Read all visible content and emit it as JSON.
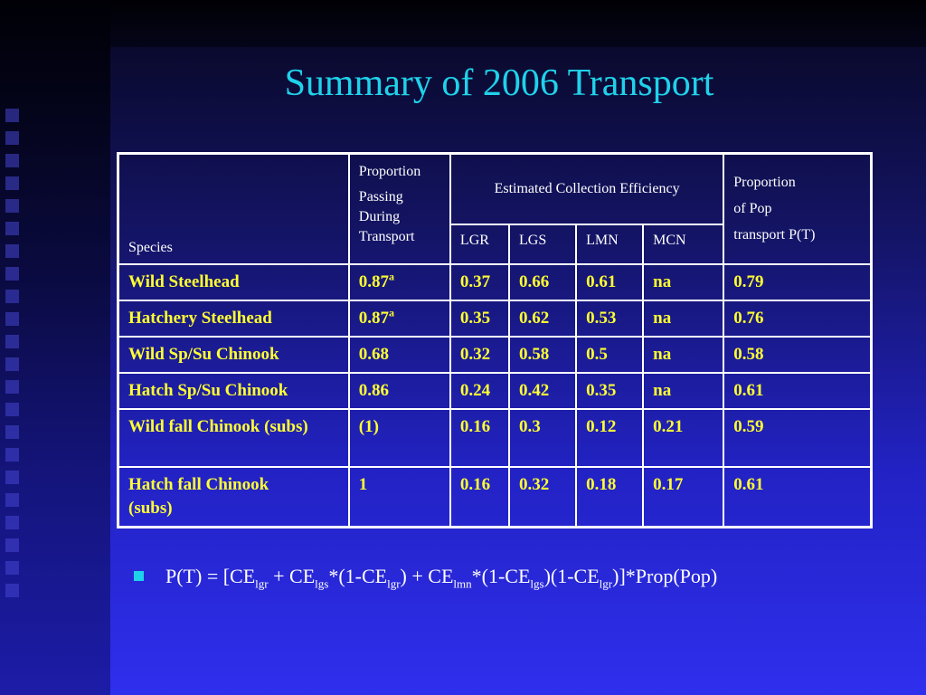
{
  "title": "Summary of 2006 Transport",
  "table": {
    "headers": {
      "species": "Species",
      "proportion_passing": [
        "Proportion",
        "Passing",
        "During",
        "Transport"
      ],
      "estimated_ce": "Estimated Collection Efficiency",
      "proportion_pop": [
        "Proportion",
        "of Pop",
        "transport P(T)"
      ],
      "sub": [
        "LGR",
        "LGS",
        "LMN",
        "MCN"
      ]
    },
    "rows": [
      {
        "species": "Wild Steelhead",
        "passing": "0.87",
        "note": "a",
        "lgr": "0.37",
        "lgs": "0.66",
        "lmn": "0.61",
        "mcn": "na",
        "pt": "0.79"
      },
      {
        "species": "Hatchery Steelhead",
        "passing": "0.87",
        "note": "a",
        "lgr": "0.35",
        "lgs": "0.62",
        "lmn": "0.53",
        "mcn": "na",
        "pt": "0.76"
      },
      {
        "species": "Wild Sp/Su Chinook",
        "passing": "0.68",
        "note": "",
        "lgr": "0.32",
        "lgs": "0.58",
        "lmn": "0.5",
        "mcn": "na",
        "pt": "0.58"
      },
      {
        "species": "Hatch Sp/Su Chinook",
        "passing": "0.86",
        "note": "",
        "lgr": "0.24",
        "lgs": "0.42",
        "lmn": "0.35",
        "mcn": "na",
        "pt": "0.61"
      },
      {
        "species": "Wild fall Chinook (subs)",
        "passing": "(1)",
        "note": "",
        "lgr": "0.16",
        "lgs": "0.3",
        "lmn": "0.12",
        "mcn": "0.21",
        "pt": "0.59"
      },
      {
        "species": "Hatch fall Chinook (subs)",
        "passing": "1",
        "note": "",
        "lgr": "0.16",
        "lgs": "0.32",
        "lmn": "0.18",
        "mcn": "0.17",
        "pt": "0.61"
      }
    ]
  },
  "formula": {
    "p1": "P(T) = [CE",
    "s1": "lgr",
    "p2": " + CE",
    "s2": "lgs",
    "p3": "*(1-CE",
    "s3": "lgr",
    "p4": ") + CE",
    "s4": "lmn",
    "p5": "*(1-CE",
    "s5": "lgs",
    "p6": ")(1-CE",
    "s6": "lgr",
    "p7": ")]*Prop(Pop)"
  },
  "colors": {
    "title": "#1fd2ea",
    "cell_text": "#ffff33",
    "header_text": "#ffffff",
    "bullet": "#1fd2ea"
  },
  "icons": {
    "bullet": "square-bullet-icon"
  }
}
